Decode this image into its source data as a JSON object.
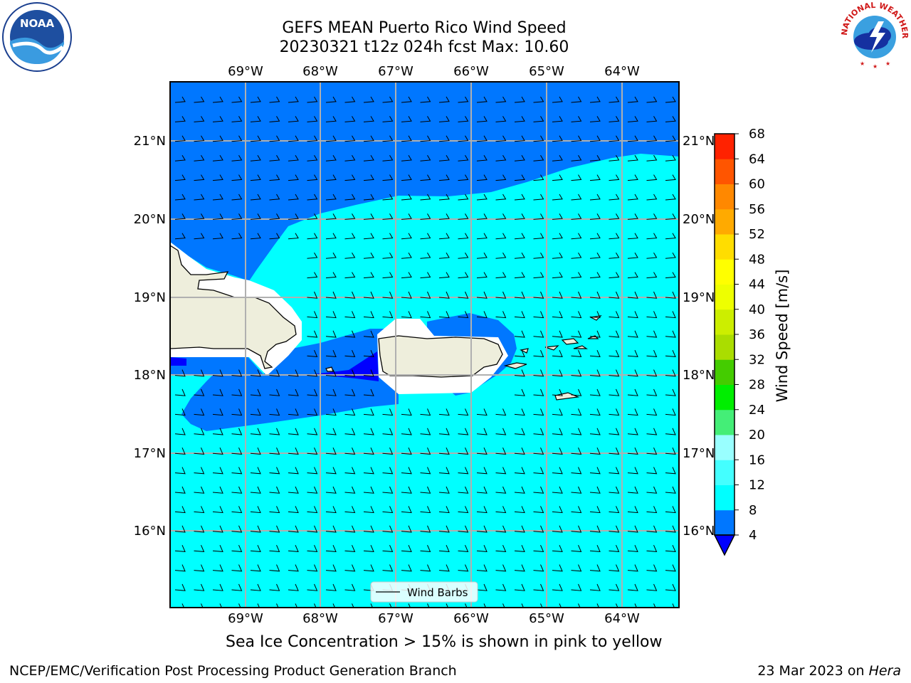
{
  "header": {
    "title_line1": "GEFS MEAN Puerto Rico Wind Speed",
    "title_line2": "20230321 t12z 024h fcst   Max: 10.60"
  },
  "map": {
    "lon_labels": [
      "69°W",
      "68°W",
      "67°W",
      "66°W",
      "65°W",
      "64°W"
    ],
    "lat_labels": [
      "21°N",
      "20°N",
      "19°N",
      "18°N",
      "17°N",
      "16°N"
    ],
    "land_color": "#eeeedc",
    "legend_label": "Wind Barbs"
  },
  "colorbar": {
    "label": "Wind Speed [m/s]",
    "ticks": [
      "4",
      "8",
      "12",
      "16",
      "20",
      "24",
      "28",
      "32",
      "36",
      "40",
      "44",
      "48",
      "52",
      "56",
      "60",
      "64",
      "68"
    ],
    "colors": [
      "#0077ff",
      "#00ffff",
      "#44ffff",
      "#99ffff",
      "#44ee77",
      "#00ee00",
      "#44cc00",
      "#aadd00",
      "#ccee00",
      "#eeff00",
      "#ffff00",
      "#ffdd00",
      "#ffaa00",
      "#ff8800",
      "#ff5500",
      "#ff2200",
      "#ff0000"
    ],
    "under_color": "#0000ff"
  },
  "note": "Sea Ice Concentration > 15% is shown in pink to yellow",
  "footer": {
    "left": "NCEP/EMC/Verification Post Processing Product Generation Branch",
    "right_date": "23 Mar 2023 on",
    "right_host": "Hera"
  },
  "logos": {
    "noaa_text": "NOAA",
    "nws_text": "NATIONAL WEATHER SERVICE"
  }
}
